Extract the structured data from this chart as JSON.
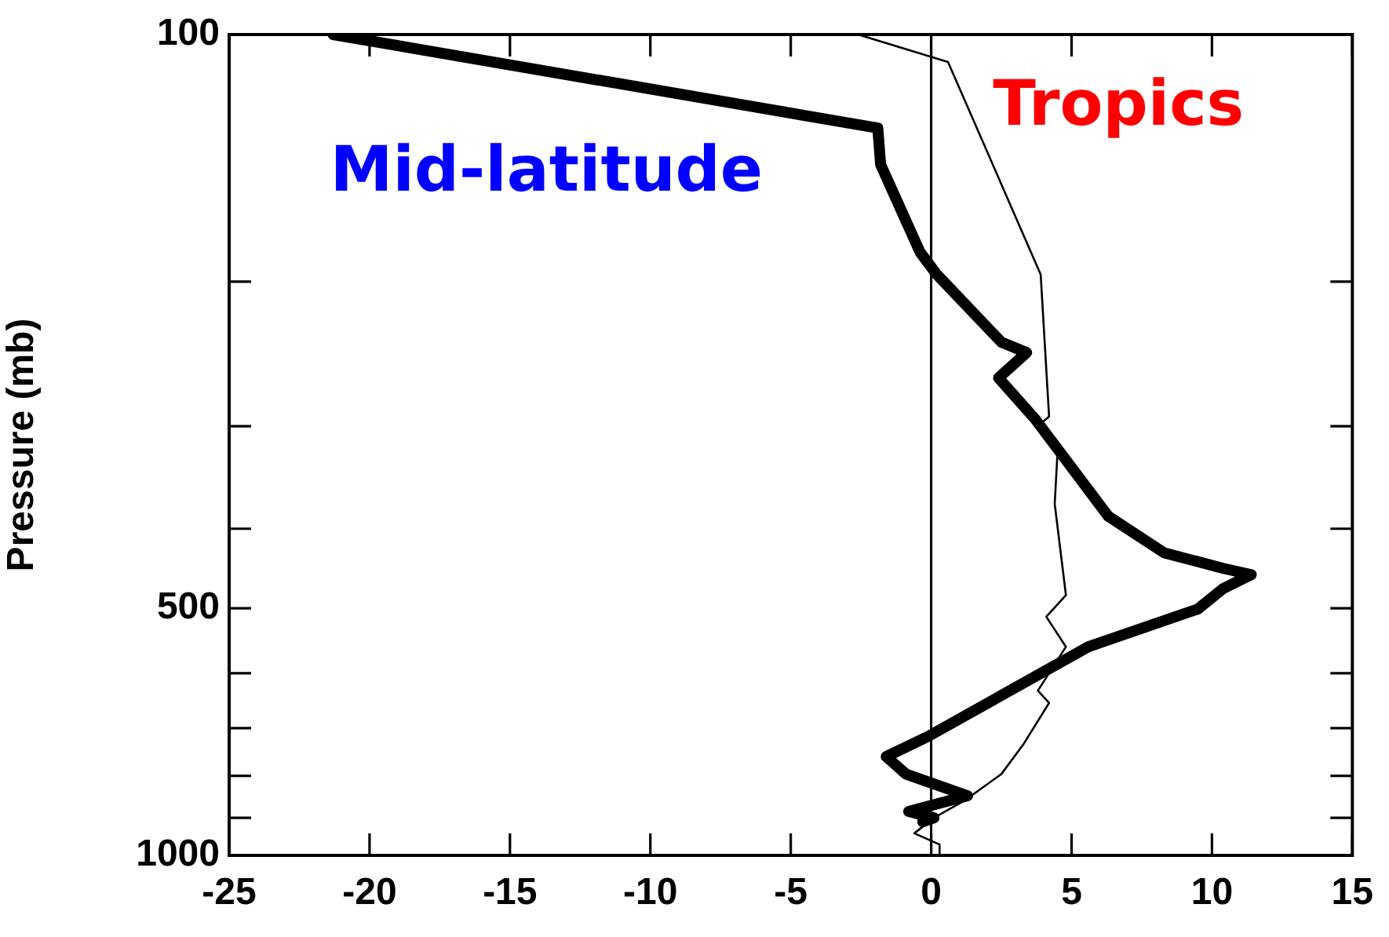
{
  "chart_data": {
    "type": "line",
    "ylabel": "Pressure (mb)",
    "log": "y",
    "xlim": [
      -25,
      15
    ],
    "xticks": [
      -25,
      -20,
      -15,
      -10,
      -5,
      0,
      5,
      10,
      15
    ],
    "ylim": [
      1000,
      100
    ],
    "yticks": [
      100,
      {
        "value": 200,
        "label": null
      },
      {
        "value": 300,
        "label": null
      },
      {
        "value": 400,
        "label": null
      },
      500,
      {
        "value": 600,
        "label": null
      },
      {
        "value": 700,
        "label": null
      },
      {
        "value": 800,
        "label": null
      },
      {
        "value": 900,
        "label": null
      },
      1000
    ],
    "grid": false,
    "legend": "top",
    "marker": "none",
    "line_style": "solid",
    "ref_lines": [
      {
        "axis": "x",
        "value": 0,
        "color": "#000000"
      }
    ],
    "series": [
      {
        "name": "Mid-latitude",
        "color": "#000000",
        "x": [
          -21.3,
          -1.9,
          -1.8,
          -0.4,
          0.2,
          2.5,
          3.4,
          2.4,
          3.7,
          4.6,
          6.3,
          8.3,
          10.4,
          11.4,
          10.4,
          9.5,
          5.6,
          -0.1,
          -1.6,
          -0.9,
          1.3,
          -0.8,
          0.1,
          -0.3
        ],
        "values": [
          100,
          130,
          144,
          184,
          196,
          237,
          244,
          262,
          294,
          323,
          386,
          428,
          447,
          455,
          473,
          501,
          557,
          716,
          758,
          796,
          846,
          884,
          900,
          910
        ]
      },
      {
        "name": "Tropics",
        "color": "#000000",
        "x": [
          -2.6,
          0.6,
          3.9,
          4.2,
          3.8,
          4.5,
          4.4,
          4.8,
          4.1,
          4.8,
          3.8,
          4.2,
          3.3,
          2.5,
          1.2,
          0.1,
          -0.6,
          0.3,
          0.3
        ],
        "values": [
          100,
          108,
          196,
          292,
          300,
          323,
          373,
          482,
          512,
          557,
          630,
          652,
          731,
          796,
          857,
          900,
          940,
          970,
          1000
        ]
      }
    ]
  }
}
